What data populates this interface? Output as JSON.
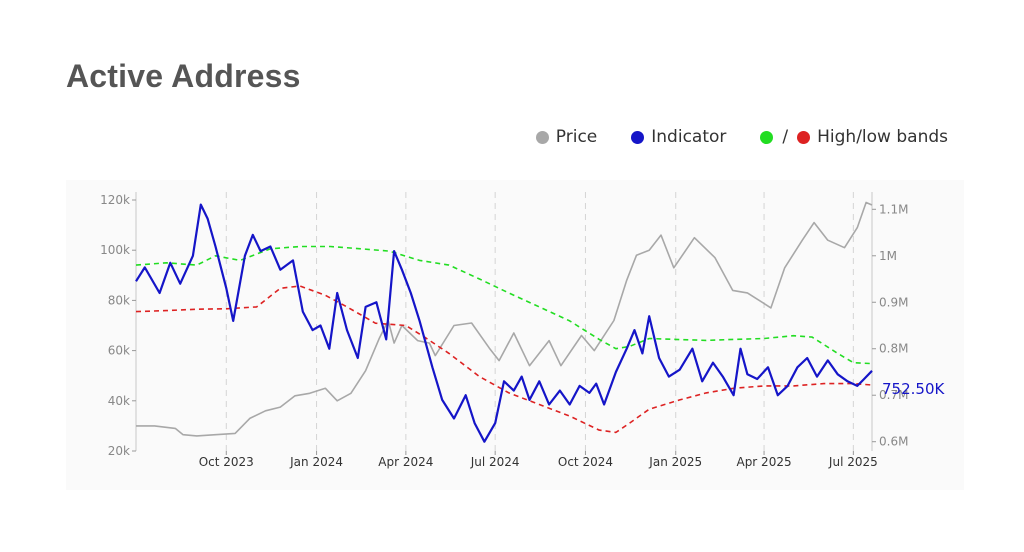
{
  "title": "Active Address",
  "legend": {
    "price_label": "Price",
    "indicator_label": "Indicator",
    "bands_label": "High/low bands",
    "slash": "/"
  },
  "colors": {
    "price": "#a8a8a8",
    "indicator": "#1515c8",
    "high_band": "#22dd22",
    "low_band": "#dd2222",
    "grid": "#d4d4d4",
    "axis_text": "#888888",
    "title": "#555555"
  },
  "chart_data": {
    "type": "line",
    "x_range": [
      "2023-07-01",
      "2025-07-20"
    ],
    "x_ticks": [
      {
        "date": "2023-10-01",
        "label": "Oct 2023"
      },
      {
        "date": "2024-01-01",
        "label": "Jan 2024"
      },
      {
        "date": "2024-04-01",
        "label": "Apr 2024"
      },
      {
        "date": "2024-07-01",
        "label": "Jul 2024"
      },
      {
        "date": "2024-10-01",
        "label": "Oct 2024"
      },
      {
        "date": "2025-01-01",
        "label": "Jan 2025"
      },
      {
        "date": "2025-04-01",
        "label": "Apr 2025"
      },
      {
        "date": "2025-07-01",
        "label": "Jul 2025"
      }
    ],
    "y_left": {
      "range": [
        20000,
        120000
      ],
      "ticks": [
        {
          "v": 20000,
          "label": "20k"
        },
        {
          "v": 40000,
          "label": "40k"
        },
        {
          "v": 60000,
          "label": "60k"
        },
        {
          "v": 80000,
          "label": "80k"
        },
        {
          "v": 100000,
          "label": "100k"
        },
        {
          "v": 120000,
          "label": "120k"
        }
      ]
    },
    "y_right": {
      "range": [
        580000,
        1120000
      ],
      "ticks": [
        {
          "v": 600000,
          "label": "0.6M"
        },
        {
          "v": 700000,
          "label": "0.7M"
        },
        {
          "v": 800000,
          "label": "0.8M"
        },
        {
          "v": 900000,
          "label": "0.9M"
        },
        {
          "v": 1000000,
          "label": "1M"
        },
        {
          "v": 1100000,
          "label": "1.1M"
        }
      ]
    },
    "last_value_label": "752.50K",
    "grid": "vertical dashed",
    "legend_position": "top-right",
    "series": [
      {
        "name": "Price",
        "axis": "left",
        "points": [
          [
            "2023-07-01",
            30000
          ],
          [
            "2023-07-20",
            30000
          ],
          [
            "2023-08-10",
            29000
          ],
          [
            "2023-08-18",
            26500
          ],
          [
            "2023-09-01",
            26000
          ],
          [
            "2023-09-20",
            26500
          ],
          [
            "2023-10-10",
            27000
          ],
          [
            "2023-10-25",
            33000
          ],
          [
            "2023-11-10",
            36000
          ],
          [
            "2023-11-25",
            37500
          ],
          [
            "2023-12-10",
            42000
          ],
          [
            "2023-12-25",
            43000
          ],
          [
            "2024-01-10",
            45000
          ],
          [
            "2024-01-22",
            40000
          ],
          [
            "2024-02-05",
            43000
          ],
          [
            "2024-02-20",
            52000
          ],
          [
            "2024-03-05",
            65000
          ],
          [
            "2024-03-14",
            72000
          ],
          [
            "2024-03-20",
            63000
          ],
          [
            "2024-03-28",
            70000
          ],
          [
            "2024-04-13",
            64000
          ],
          [
            "2024-04-25",
            63000
          ],
          [
            "2024-05-01",
            58000
          ],
          [
            "2024-05-20",
            70000
          ],
          [
            "2024-06-07",
            71000
          ],
          [
            "2024-06-25",
            61000
          ],
          [
            "2024-07-05",
            56000
          ],
          [
            "2024-07-20",
            67000
          ],
          [
            "2024-08-05",
            54000
          ],
          [
            "2024-08-25",
            64000
          ],
          [
            "2024-09-06",
            54000
          ],
          [
            "2024-09-27",
            66000
          ],
          [
            "2024-10-10",
            60000
          ],
          [
            "2024-10-30",
            72000
          ],
          [
            "2024-11-12",
            88000
          ],
          [
            "2024-11-22",
            98000
          ],
          [
            "2024-12-05",
            100000
          ],
          [
            "2024-12-17",
            106000
          ],
          [
            "2024-12-30",
            93000
          ],
          [
            "2025-01-20",
            105000
          ],
          [
            "2025-02-10",
            97000
          ],
          [
            "2025-02-28",
            84000
          ],
          [
            "2025-03-15",
            83000
          ],
          [
            "2025-04-08",
            77000
          ],
          [
            "2025-04-22",
            93000
          ],
          [
            "2025-05-10",
            104000
          ],
          [
            "2025-05-22",
            111000
          ],
          [
            "2025-06-05",
            104000
          ],
          [
            "2025-06-22",
            101000
          ],
          [
            "2025-07-05",
            109000
          ],
          [
            "2025-07-14",
            119000
          ],
          [
            "2025-07-20",
            118000
          ]
        ]
      },
      {
        "name": "Indicator",
        "axis": "right",
        "points": [
          [
            "2023-07-01",
            945000
          ],
          [
            "2023-07-10",
            975000
          ],
          [
            "2023-07-25",
            920000
          ],
          [
            "2023-08-05",
            985000
          ],
          [
            "2023-08-15",
            940000
          ],
          [
            "2023-08-28",
            1000000
          ],
          [
            "2023-09-05",
            1110000
          ],
          [
            "2023-09-12",
            1080000
          ],
          [
            "2023-09-20",
            1020000
          ],
          [
            "2023-10-01",
            930000
          ],
          [
            "2023-10-08",
            860000
          ],
          [
            "2023-10-20",
            1000000
          ],
          [
            "2023-10-28",
            1045000
          ],
          [
            "2023-11-05",
            1010000
          ],
          [
            "2023-11-15",
            1020000
          ],
          [
            "2023-11-25",
            970000
          ],
          [
            "2023-12-08",
            990000
          ],
          [
            "2023-12-18",
            880000
          ],
          [
            "2023-12-28",
            840000
          ],
          [
            "2024-01-05",
            850000
          ],
          [
            "2024-01-14",
            800000
          ],
          [
            "2024-01-22",
            920000
          ],
          [
            "2024-02-01",
            840000
          ],
          [
            "2024-02-12",
            780000
          ],
          [
            "2024-02-20",
            890000
          ],
          [
            "2024-03-02",
            900000
          ],
          [
            "2024-03-12",
            820000
          ],
          [
            "2024-03-20",
            1010000
          ],
          [
            "2024-03-28",
            970000
          ],
          [
            "2024-04-06",
            920000
          ],
          [
            "2024-04-15",
            860000
          ],
          [
            "2024-04-28",
            760000
          ],
          [
            "2024-05-08",
            690000
          ],
          [
            "2024-05-20",
            650000
          ],
          [
            "2024-06-01",
            700000
          ],
          [
            "2024-06-10",
            640000
          ],
          [
            "2024-06-20",
            600000
          ],
          [
            "2024-07-01",
            640000
          ],
          [
            "2024-07-10",
            730000
          ],
          [
            "2024-07-20",
            710000
          ],
          [
            "2024-07-28",
            740000
          ],
          [
            "2024-08-05",
            690000
          ],
          [
            "2024-08-15",
            730000
          ],
          [
            "2024-08-25",
            680000
          ],
          [
            "2024-09-05",
            710000
          ],
          [
            "2024-09-15",
            680000
          ],
          [
            "2024-09-25",
            720000
          ],
          [
            "2024-10-05",
            705000
          ],
          [
            "2024-10-12",
            725000
          ],
          [
            "2024-10-20",
            680000
          ],
          [
            "2024-11-01",
            750000
          ],
          [
            "2024-11-12",
            800000
          ],
          [
            "2024-11-20",
            840000
          ],
          [
            "2024-11-28",
            790000
          ],
          [
            "2024-12-05",
            870000
          ],
          [
            "2024-12-15",
            780000
          ],
          [
            "2024-12-25",
            740000
          ],
          [
            "2025-01-05",
            755000
          ],
          [
            "2025-01-18",
            800000
          ],
          [
            "2025-01-28",
            730000
          ],
          [
            "2025-02-08",
            770000
          ],
          [
            "2025-02-18",
            740000
          ],
          [
            "2025-03-01",
            700000
          ],
          [
            "2025-03-08",
            800000
          ],
          [
            "2025-03-15",
            745000
          ],
          [
            "2025-03-25",
            735000
          ],
          [
            "2025-04-05",
            760000
          ],
          [
            "2025-04-15",
            700000
          ],
          [
            "2025-04-25",
            720000
          ],
          [
            "2025-05-05",
            760000
          ],
          [
            "2025-05-15",
            780000
          ],
          [
            "2025-05-25",
            740000
          ],
          [
            "2025-06-05",
            775000
          ],
          [
            "2025-06-15",
            745000
          ],
          [
            "2025-06-25",
            730000
          ],
          [
            "2025-07-05",
            720000
          ],
          [
            "2025-07-12",
            735000
          ],
          [
            "2025-07-20",
            752500
          ]
        ]
      },
      {
        "name": "High band",
        "axis": "right",
        "dashed": true,
        "points": [
          [
            "2023-07-01",
            980000
          ],
          [
            "2023-08-01",
            985000
          ],
          [
            "2023-09-01",
            980000
          ],
          [
            "2023-09-20",
            1000000
          ],
          [
            "2023-10-15",
            990000
          ],
          [
            "2023-11-15",
            1015000
          ],
          [
            "2023-12-15",
            1020000
          ],
          [
            "2024-01-15",
            1020000
          ],
          [
            "2024-02-15",
            1015000
          ],
          [
            "2024-03-15",
            1010000
          ],
          [
            "2024-04-15",
            990000
          ],
          [
            "2024-05-15",
            980000
          ],
          [
            "2024-06-15",
            950000
          ],
          [
            "2024-07-15",
            920000
          ],
          [
            "2024-08-15",
            890000
          ],
          [
            "2024-09-15",
            860000
          ],
          [
            "2024-10-15",
            820000
          ],
          [
            "2024-11-01",
            800000
          ],
          [
            "2024-11-15",
            805000
          ],
          [
            "2024-12-05",
            822000
          ],
          [
            "2025-01-01",
            820000
          ],
          [
            "2025-02-01",
            818000
          ],
          [
            "2025-03-01",
            820000
          ],
          [
            "2025-04-01",
            822000
          ],
          [
            "2025-05-01",
            828000
          ],
          [
            "2025-05-20",
            825000
          ],
          [
            "2025-06-15",
            790000
          ],
          [
            "2025-07-01",
            770000
          ],
          [
            "2025-07-20",
            768000
          ]
        ]
      },
      {
        "name": "Low band",
        "axis": "right",
        "dashed": true,
        "points": [
          [
            "2023-07-01",
            880000
          ],
          [
            "2023-08-01",
            882000
          ],
          [
            "2023-09-01",
            885000
          ],
          [
            "2023-10-01",
            886000
          ],
          [
            "2023-11-01",
            890000
          ],
          [
            "2023-11-25",
            930000
          ],
          [
            "2023-12-15",
            935000
          ],
          [
            "2024-01-10",
            915000
          ],
          [
            "2024-02-01",
            890000
          ],
          [
            "2024-03-01",
            855000
          ],
          [
            "2024-04-01",
            850000
          ],
          [
            "2024-04-20",
            825000
          ],
          [
            "2024-05-15",
            790000
          ],
          [
            "2024-06-15",
            740000
          ],
          [
            "2024-07-15",
            705000
          ],
          [
            "2024-08-15",
            680000
          ],
          [
            "2024-09-15",
            655000
          ],
          [
            "2024-10-15",
            625000
          ],
          [
            "2024-11-01",
            620000
          ],
          [
            "2024-11-15",
            640000
          ],
          [
            "2024-12-05",
            670000
          ],
          [
            "2025-01-05",
            690000
          ],
          [
            "2025-02-01",
            705000
          ],
          [
            "2025-03-01",
            715000
          ],
          [
            "2025-04-01",
            720000
          ],
          [
            "2025-05-01",
            720000
          ],
          [
            "2025-06-01",
            725000
          ],
          [
            "2025-07-01",
            725000
          ],
          [
            "2025-07-20",
            722000
          ]
        ]
      }
    ]
  }
}
